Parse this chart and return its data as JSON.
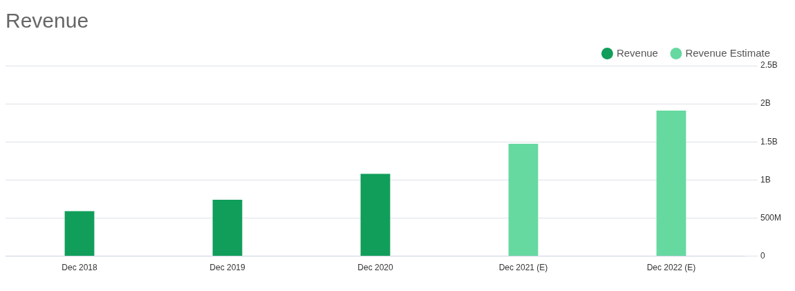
{
  "chart_data": {
    "type": "bar",
    "title": "Revenue",
    "categories": [
      "Dec 2018",
      "Dec 2019",
      "Dec 2020",
      "Dec 2021 (E)",
      "Dec 2022 (E)"
    ],
    "series": [
      {
        "name": "Revenue",
        "color": "#119e5a",
        "values": [
          590000000,
          740000000,
          1080000000,
          null,
          null
        ]
      },
      {
        "name": "Revenue Estimate",
        "color": "#66d9a1",
        "values": [
          null,
          null,
          null,
          1475000000,
          1910000000
        ]
      }
    ],
    "ylim": [
      0,
      2500000000
    ],
    "yticks": [
      0,
      {
        "value": 500000000,
        "label": "500M"
      },
      {
        "value": 1000000000,
        "label": "1B"
      },
      {
        "value": 1500000000,
        "label": "1.5B"
      },
      {
        "value": 2000000000,
        "label": "2B"
      },
      {
        "value": 2500000000,
        "label": "2.5B"
      }
    ],
    "grid": "y",
    "legend": "top right"
  }
}
